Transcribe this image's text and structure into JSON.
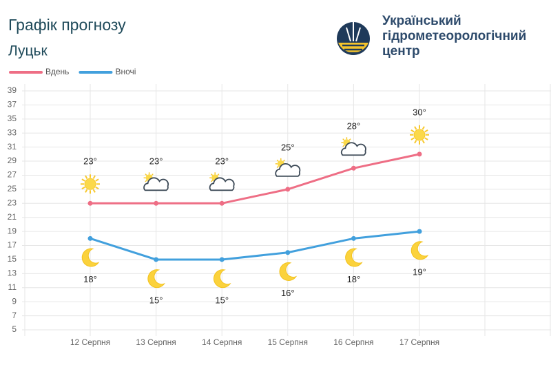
{
  "org": [
    "Український",
    "гідрометеорологічний",
    "центр"
  ],
  "chart_data": {
    "type": "line",
    "title": "Графік прогнозу",
    "subtitle": "Луцьк",
    "categories": [
      "12 Серпня",
      "13 Серпня",
      "14 Серпня",
      "15 Серпня",
      "16 Серпня",
      "17 Серпня"
    ],
    "series": [
      {
        "name": "Вдень",
        "color": "#ee6e85",
        "values": [
          23,
          23,
          23,
          25,
          28,
          30
        ],
        "value_labels": [
          "23°",
          "23°",
          "23°",
          "25°",
          "28°",
          "30°"
        ],
        "icons": [
          "sun",
          "partly-cloudy",
          "partly-cloudy",
          "partly-cloudy",
          "partly-cloudy",
          "sun"
        ]
      },
      {
        "name": "Вночі",
        "color": "#42a0dd",
        "values": [
          18,
          15,
          15,
          16,
          18,
          19
        ],
        "value_labels": [
          "18°",
          "15°",
          "15°",
          "16°",
          "18°",
          "19°"
        ],
        "icons": [
          "moon",
          "moon",
          "moon",
          "moon",
          "moon",
          "moon"
        ]
      }
    ],
    "ylim": [
      5,
      39
    ],
    "yticks": [
      5,
      7,
      9,
      11,
      13,
      15,
      17,
      19,
      21,
      23,
      25,
      27,
      29,
      31,
      33,
      35,
      37,
      39
    ],
    "grid": true,
    "legend": "top-left"
  }
}
